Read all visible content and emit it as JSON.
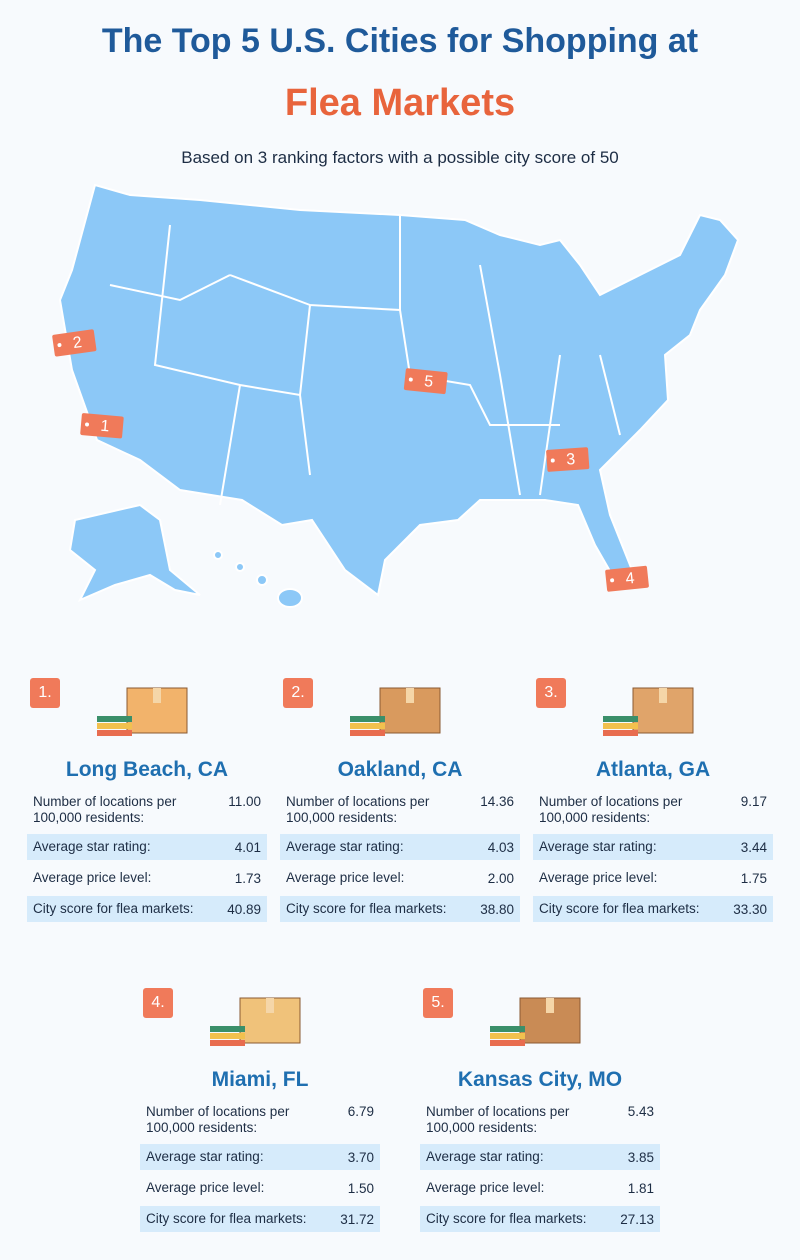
{
  "header": {
    "title_line1": "The Top 5 U.S. Cities for Shopping at",
    "title_line2": "Flea Markets",
    "subtitle": "Based on 3 ranking factors with a possible city score of 50"
  },
  "map": {
    "markers": [
      "2",
      "1",
      "5",
      "3",
      "4"
    ]
  },
  "cities": [
    {
      "rank": "1.",
      "name": "Long Beach, CA",
      "rows": [
        {
          "label": "Number of locations per 100,000 residents:",
          "value": "11.00"
        },
        {
          "label": "Average star rating:",
          "value": "4.01"
        },
        {
          "label": "Average price level:",
          "value": "1.73"
        },
        {
          "label": "City score for flea markets:",
          "value": "40.89"
        }
      ]
    },
    {
      "rank": "2.",
      "name": "Oakland, CA",
      "rows": [
        {
          "label": "Number of locations per 100,000 residents:",
          "value": "14.36"
        },
        {
          "label": "Average star rating:",
          "value": "4.03"
        },
        {
          "label": "Average price level:",
          "value": "2.00"
        },
        {
          "label": "City score for flea markets:",
          "value": "38.80"
        }
      ]
    },
    {
      "rank": "3.",
      "name": "Atlanta, GA",
      "rows": [
        {
          "label": "Number of locations per 100,000 residents:",
          "value": "9.17"
        },
        {
          "label": "Average star rating:",
          "value": "3.44"
        },
        {
          "label": "Average price level:",
          "value": "1.75"
        },
        {
          "label": "City score for flea markets:",
          "value": "33.30"
        }
      ]
    },
    {
      "rank": "4.",
      "name": "Miami, FL",
      "rows": [
        {
          "label": "Number of locations per 100,000 residents:",
          "value": "6.79"
        },
        {
          "label": "Average star rating:",
          "value": "3.70"
        },
        {
          "label": "Average price level:",
          "value": "1.50"
        },
        {
          "label": "City score for flea markets:",
          "value": "31.72"
        }
      ]
    },
    {
      "rank": "5.",
      "name": "Kansas City, MO",
      "rows": [
        {
          "label": "Number of locations per 100,000 residents:",
          "value": "5.43"
        },
        {
          "label": "Average star rating:",
          "value": "3.85"
        },
        {
          "label": "Average price level:",
          "value": "1.81"
        },
        {
          "label": "City score for flea markets:",
          "value": "27.13"
        }
      ]
    }
  ]
}
